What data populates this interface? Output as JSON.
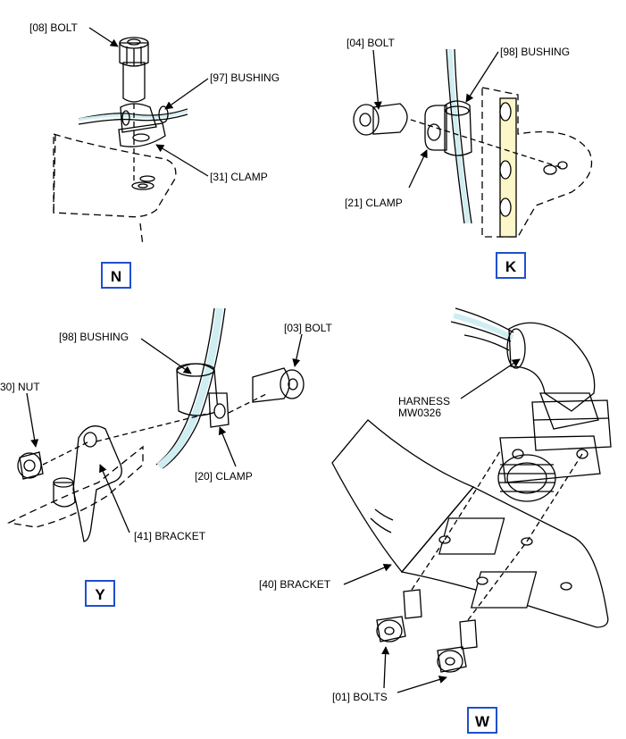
{
  "views": {
    "n": {
      "label": "N",
      "callouts": {
        "bolt": "[08] BOLT",
        "bushing": "[97] BUSHING",
        "clamp": "[31] CLAMP"
      }
    },
    "k": {
      "label": "K",
      "callouts": {
        "bolt": "[04] BOLT",
        "bushing": "[98] BUSHING",
        "clamp": "[21] CLAMP"
      }
    },
    "y": {
      "label": "Y",
      "callouts": {
        "bushing": "[98] BUSHING",
        "bolt": "[03] BOLT",
        "nut": "30] NUT",
        "clamp": "[20] CLAMP",
        "bracket": "[41] BRACKET"
      }
    },
    "w": {
      "label": "W",
      "callouts": {
        "harness_line1": "HARNESS",
        "harness_line2": "MW0326",
        "bracket": "[40] BRACKET",
        "bolts": "[01] BOLTS"
      }
    }
  },
  "colors": {
    "part_fill": "#cfeef2",
    "structure_fill": "#fdf6c9",
    "view_label_border": "#1f4fd0",
    "line": "#000000"
  }
}
